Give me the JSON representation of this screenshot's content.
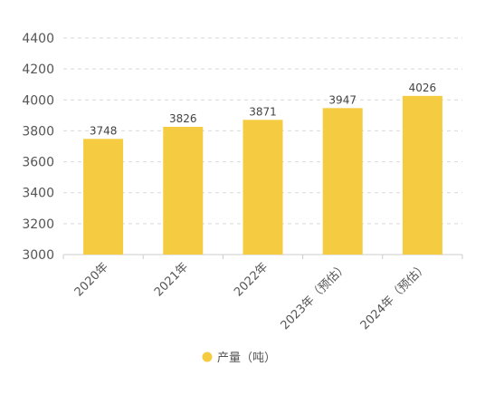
{
  "chart_data": {
    "type": "bar",
    "categories": [
      "2020年",
      "2021年",
      "2022年",
      "2023年（预估）",
      "2024年（预估）"
    ],
    "series": [
      {
        "name": "产量（吨）",
        "values": [
          3748,
          3826,
          3871,
          3947,
          4026
        ],
        "color": "#F5CB42"
      }
    ],
    "title": "",
    "xlabel": "",
    "ylabel": "",
    "ylim": [
      3000,
      4400
    ],
    "yticks": [
      3000,
      3200,
      3400,
      3600,
      3800,
      4000,
      4200,
      4400
    ],
    "grid": true,
    "legend": "bottom-center",
    "colors": {
      "grid": "#d9d9d9",
      "axis": "#cccccc",
      "text": "#555555"
    }
  }
}
